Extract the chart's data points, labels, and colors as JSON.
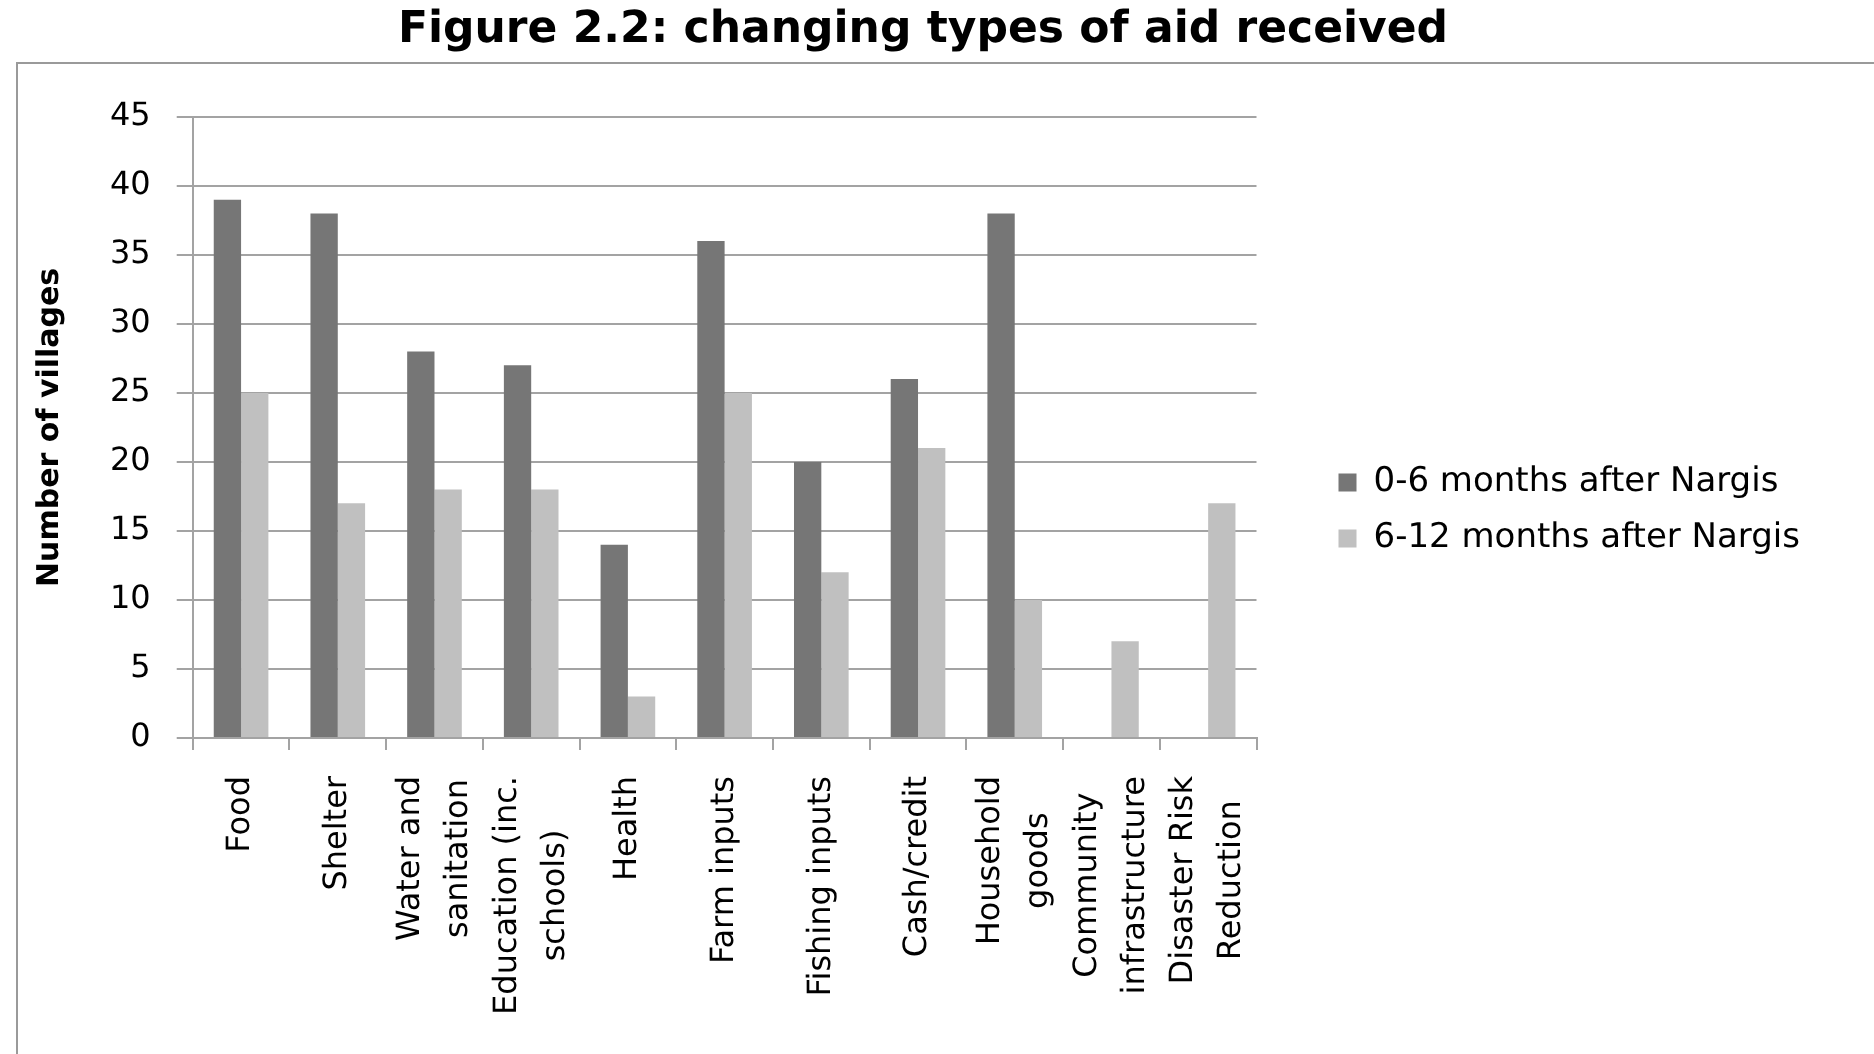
{
  "chart_data": {
    "type": "bar",
    "title": "Figure 2.2: changing types of aid received",
    "ylabel": "Number of villages",
    "categories": [
      "Food",
      "Shelter",
      "Water and sanitation",
      "Education (inc. schools)",
      "Health",
      "Farm inputs",
      "Fishing inputs",
      "Cash/credit",
      "Household goods",
      "Community infrastructure",
      "Disaster Risk Reduction"
    ],
    "series": [
      {
        "name": "0-6 months after Nargis",
        "color": "#767676",
        "values": [
          39,
          38,
          28,
          27,
          14,
          36,
          20,
          26,
          38,
          null,
          null
        ]
      },
      {
        "name": "6-12 months after Nargis",
        "color": "#c0c0c0",
        "values": [
          25,
          17,
          18,
          18,
          3,
          25,
          12,
          21,
          10,
          7,
          17
        ]
      }
    ],
    "ylim": [
      0,
      45
    ],
    "yticks": [
      0,
      5,
      10,
      15,
      20,
      25,
      30,
      35,
      40,
      45
    ],
    "grid": "y",
    "legend": "right"
  }
}
